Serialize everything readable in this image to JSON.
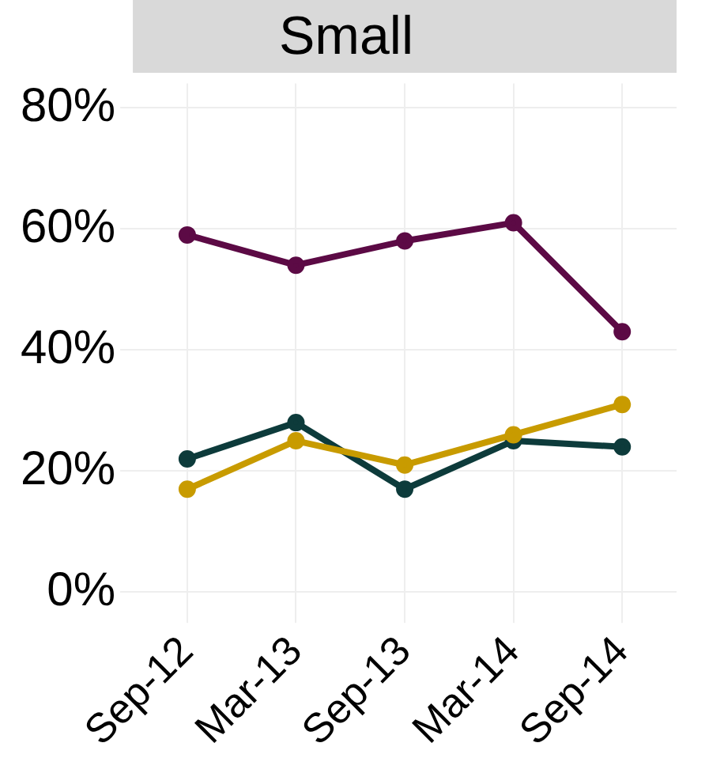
{
  "chart_data": {
    "type": "line",
    "title": "Small",
    "categories": [
      "Sep-12",
      "Mar-13",
      "Sep-13",
      "Mar-14",
      "Sep-14"
    ],
    "series": [
      {
        "color": "#5c0a45",
        "values": [
          59,
          54,
          58,
          61,
          43
        ]
      },
      {
        "color": "#0d3b3b",
        "values": [
          22,
          28,
          17,
          25,
          24
        ]
      },
      {
        "color": "#c89b00",
        "values": [
          17,
          25,
          21,
          26,
          31
        ]
      }
    ],
    "ylim": [
      -3,
      84
    ],
    "yticks": [
      {
        "value": 0,
        "label": "0%"
      },
      {
        "value": 20,
        "label": "20%"
      },
      {
        "value": 40,
        "label": "40%"
      },
      {
        "value": 60,
        "label": "60%"
      },
      {
        "value": 80,
        "label": "80%"
      }
    ],
    "grid": true,
    "marker": "circle",
    "line_style": "solid",
    "legend": false
  }
}
